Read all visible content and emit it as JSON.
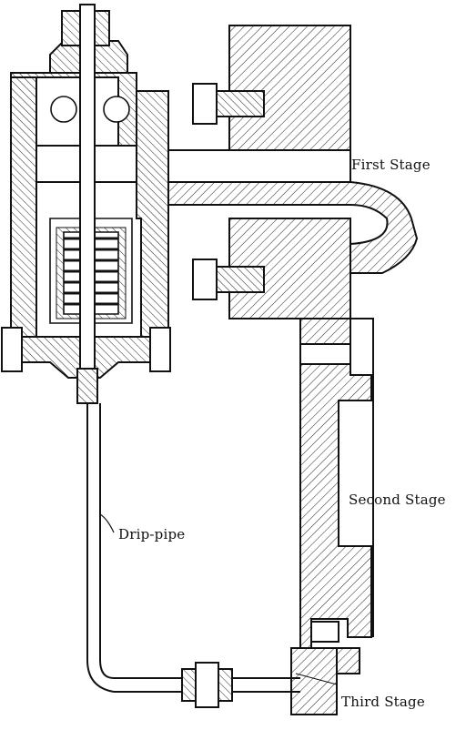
{
  "labels": {
    "first_stage": "First Stage",
    "second_stage": "Second Stage",
    "third_stage": "Third Stage",
    "drip_pipe": "Drip-pipe"
  }
}
